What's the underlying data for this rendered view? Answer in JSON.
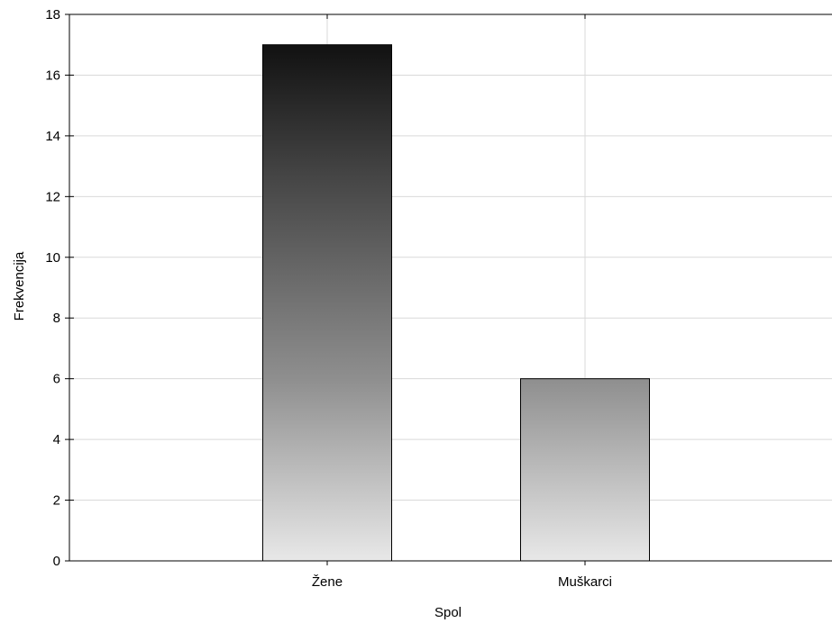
{
  "chart_data": {
    "type": "bar",
    "title": "",
    "xlabel": "Spol",
    "ylabel": "Frekvencija",
    "categories": [
      "Žene",
      "Muškarci"
    ],
    "values": [
      17,
      6
    ],
    "ylim": [
      0,
      18
    ],
    "yticks": [
      0,
      2,
      4,
      6,
      8,
      10,
      12,
      14,
      16,
      18
    ],
    "grid": true,
    "legend": "none",
    "colors": {
      "bar_top_dark": "#111111",
      "bar_bottom_light": "#e6e6e6",
      "grid": "#d9d9d9",
      "axis": "#000000"
    }
  }
}
